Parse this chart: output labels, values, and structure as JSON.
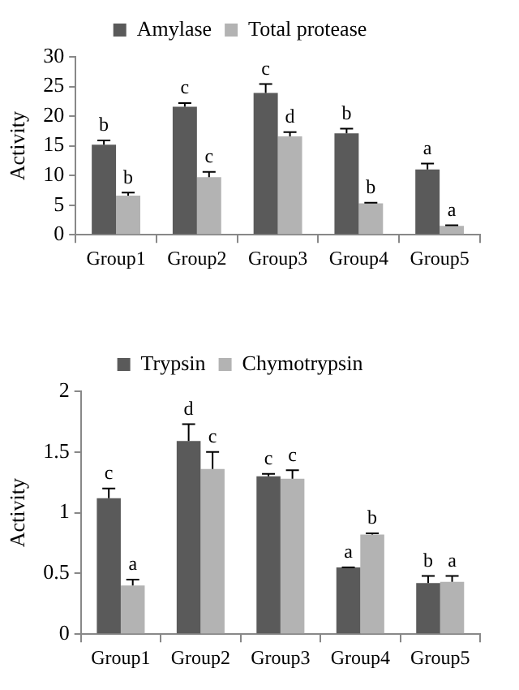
{
  "chart_data": [
    {
      "type": "bar",
      "ylabel": "Activity",
      "categories": [
        "Group1",
        "Group2",
        "Group3",
        "Group4",
        "Group5"
      ],
      "series": [
        {
          "name": "Amylase",
          "color": "#5a5a5a",
          "values": [
            15.2,
            21.6,
            23.9,
            17.1,
            11.0
          ],
          "errors": [
            0.7,
            0.6,
            1.5,
            0.8,
            1.0
          ]
        },
        {
          "name": "Total protease",
          "color": "#b3b3b3",
          "values": [
            6.6,
            9.7,
            16.6,
            5.3,
            1.5
          ],
          "errors": [
            0.5,
            0.9,
            0.7,
            0.1,
            0.1
          ]
        }
      ],
      "ylim": [
        0,
        30
      ],
      "yticks": [
        0,
        5,
        10,
        15,
        20,
        25,
        30
      ],
      "grid": false,
      "legend": "top",
      "annotations": [
        {
          "text": "b",
          "x": "Group1",
          "y": 15.9
        },
        {
          "text": "b",
          "x": "Group1",
          "y": 7.1
        },
        {
          "text": "c",
          "x": "Group2",
          "y": 22.2
        },
        {
          "text": "c",
          "x": "Group2",
          "y": 10.6
        },
        {
          "text": "c",
          "x": "Group3",
          "y": 25.4
        },
        {
          "text": "d",
          "x": "Group3",
          "y": 17.3
        },
        {
          "text": "b",
          "x": "Group4",
          "y": 17.9
        },
        {
          "text": "b",
          "x": "Group4",
          "y": 5.4
        },
        {
          "text": "a",
          "x": "Group5",
          "y": 12.0
        },
        {
          "text": "a",
          "x": "Group5",
          "y": 1.6
        }
      ]
    },
    {
      "type": "bar",
      "ylabel": "Activity",
      "categories": [
        "Group1",
        "Group2",
        "Group3",
        "Group4",
        "Group5"
      ],
      "series": [
        {
          "name": "Trypsin",
          "color": "#5a5a5a",
          "values": [
            1.12,
            1.59,
            1.3,
            0.55,
            0.42
          ],
          "errors": [
            0.08,
            0.14,
            0.02,
            0.0,
            0.06
          ]
        },
        {
          "name": "Chymotrypsin",
          "color": "#b3b3b3",
          "values": [
            0.4,
            1.36,
            1.28,
            0.82,
            0.43
          ],
          "errors": [
            0.05,
            0.14,
            0.07,
            0.01,
            0.05
          ]
        }
      ],
      "ylim": [
        0,
        2
      ],
      "yticks": [
        0,
        0.5,
        1,
        1.5,
        2
      ],
      "grid": false,
      "legend": "top",
      "annotations": [
        {
          "text": "c",
          "x": "Group1",
          "y": 1.2
        },
        {
          "text": "a",
          "x": "Group1",
          "y": 0.45
        },
        {
          "text": "d",
          "x": "Group2",
          "y": 1.73
        },
        {
          "text": "c",
          "x": "Group2",
          "y": 1.5
        },
        {
          "text": "c",
          "x": "Group3",
          "y": 1.32
        },
        {
          "text": "c",
          "x": "Group3",
          "y": 1.35
        },
        {
          "text": "a",
          "x": "Group4",
          "y": 0.55
        },
        {
          "text": "b",
          "x": "Group4",
          "y": 0.83
        },
        {
          "text": "b",
          "x": "Group5",
          "y": 0.48
        },
        {
          "text": "a",
          "x": "Group5",
          "y": 0.48
        }
      ]
    }
  ]
}
